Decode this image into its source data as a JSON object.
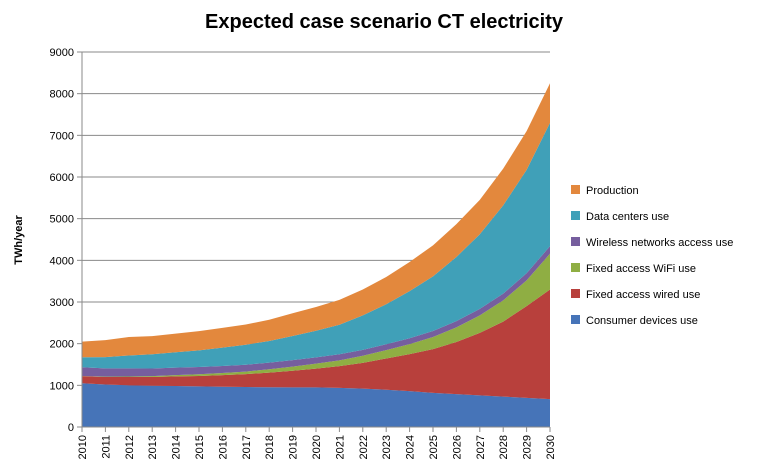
{
  "chart_data": {
    "type": "area",
    "stacked": true,
    "title": "Expected case scenario CT electricity",
    "xlabel": "",
    "ylabel": "TWh/year",
    "ylim": [
      0,
      9000
    ],
    "yticks": [
      0,
      1000,
      2000,
      3000,
      4000,
      5000,
      6000,
      7000,
      8000,
      9000
    ],
    "categories": [
      "2010",
      "2011",
      "2012",
      "2013",
      "2014",
      "2015",
      "2016",
      "2017",
      "2018",
      "2019",
      "2020",
      "2021",
      "2022",
      "2023",
      "2024",
      "2025",
      "2026",
      "2027",
      "2028",
      "2029",
      "2030"
    ],
    "grid": "horizontal",
    "legend_position": "right",
    "series": [
      {
        "name": "Consumer devices use",
        "color": "#4674b8",
        "values": [
          1050,
          1020,
          1000,
          990,
          985,
          975,
          965,
          960,
          955,
          950,
          950,
          940,
          920,
          895,
          860,
          820,
          790,
          760,
          730,
          700,
          670
        ]
      },
      {
        "name": "Fixed access wired use",
        "color": "#b8403c",
        "values": [
          170,
          180,
          200,
          210,
          230,
          250,
          280,
          310,
          350,
          400,
          450,
          520,
          620,
          750,
          890,
          1050,
          1250,
          1500,
          1800,
          2200,
          2630
        ]
      },
      {
        "name": "Fixed access WiFi use",
        "color": "#8fae43",
        "values": [
          5,
          8,
          12,
          20,
          30,
          40,
          50,
          60,
          80,
          100,
          120,
          140,
          170,
          200,
          240,
          290,
          350,
          420,
          510,
          620,
          860
        ]
      },
      {
        "name": "Wireless networks access use",
        "color": "#765e9e",
        "values": [
          210,
          200,
          195,
          185,
          180,
          175,
          170,
          165,
          160,
          155,
          150,
          145,
          140,
          140,
          140,
          145,
          150,
          155,
          160,
          170,
          180
        ]
      },
      {
        "name": "Data centers use",
        "color": "#40a0b8",
        "values": [
          240,
          270,
          310,
          340,
          370,
          400,
          440,
          480,
          520,
          580,
          640,
          710,
          830,
          960,
          1130,
          1310,
          1540,
          1790,
          2120,
          2480,
          2960
        ]
      },
      {
        "name": "Production",
        "color": "#e3883d",
        "values": [
          375,
          407,
          443,
          435,
          445,
          460,
          475,
          485,
          510,
          545,
          570,
          595,
          620,
          655,
          700,
          745,
          790,
          825,
          880,
          930,
          950
        ]
      }
    ]
  }
}
